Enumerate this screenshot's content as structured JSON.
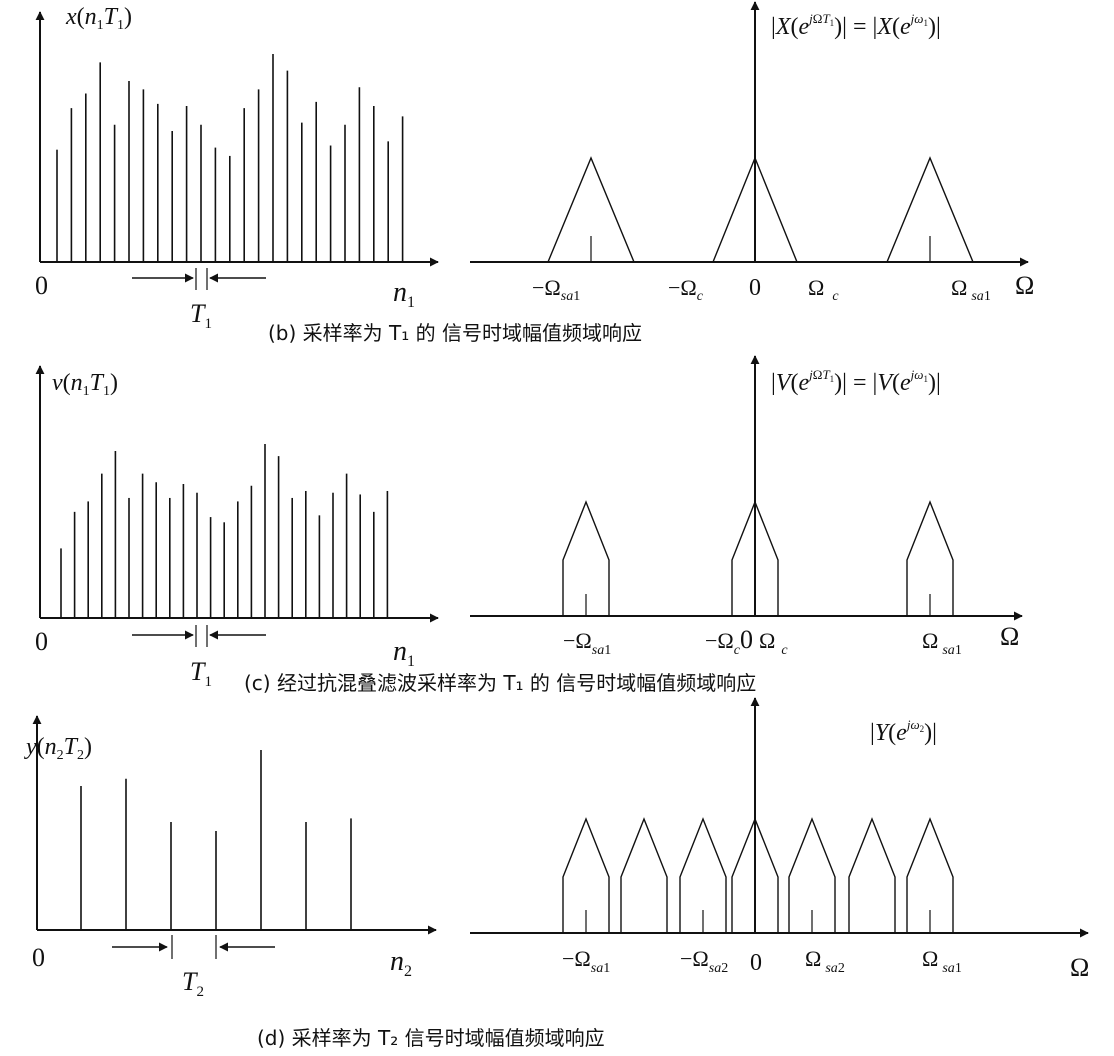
{
  "panels": {
    "b": {
      "time_label": "x(n₁T₁)",
      "zero": "0",
      "n_axis": "n₁",
      "period": "T₁",
      "stems": [
        0.54,
        0.74,
        0.81,
        0.96,
        0.66,
        0.87,
        0.83,
        0.76,
        0.63,
        0.75,
        0.66,
        0.55,
        0.51,
        0.74,
        0.83,
        1.0,
        0.92,
        0.67,
        0.77,
        0.56,
        0.66,
        0.84,
        0.75,
        0.58,
        0.7
      ],
      "spec_eq": "|X(e^{jΩT₁})| = |X(e^{jω₁})|",
      "spec_eq_text": "|X(ejΩT₁)| = |X(ejω₁)|",
      "spec_labels": [
        "−Ωsa1",
        "−Ωc",
        "0",
        "Ω c",
        "Ωsa1",
        "Ω"
      ],
      "caption": "(b) 采样率为 T₁ 的 信号时域幅值频域响应"
    },
    "c": {
      "time_label": "v(n₁T₁)",
      "zero": "0",
      "n_axis": "n₁",
      "period": "T₁",
      "stems": [
        0.4,
        0.61,
        0.67,
        0.83,
        0.96,
        0.69,
        0.83,
        0.78,
        0.69,
        0.77,
        0.72,
        0.58,
        0.55,
        0.67,
        0.76,
        1.0,
        0.93,
        0.69,
        0.73,
        0.59,
        0.72,
        0.83,
        0.71,
        0.61,
        0.73
      ],
      "spec_eq": "|V(e^{jΩT₁})| = |V(e^{jω₁})|",
      "spec_eq_text": "|V(ejΩT₁)| = |V(ejω₁)|",
      "spec_labels": [
        "−Ωsa1",
        "−Ωc 0 Ω c",
        "Ωsa1",
        "Ω"
      ],
      "caption": "(c) 经过抗混叠滤波采样率为 T₁ 的 信号时域幅值频域响应"
    },
    "d": {
      "time_label": "y(n₂T₂)",
      "zero": "0",
      "n_axis": "n₂",
      "period": "T₂",
      "stems": [
        0.8,
        0.84,
        0.6,
        0.55,
        1.0,
        0.6,
        0.62
      ],
      "spec_eq": "|Y(e^{jω₂})|",
      "spec_eq_text": "|Y(ejω₂)|",
      "spec_labels": [
        "−Ωsa1",
        "−Ωsa2",
        "0",
        "Ωsa2",
        "Ωsa1",
        "Ω"
      ],
      "caption": "(d) 采样率为 T₂ 信号时域幅值频域响应"
    }
  },
  "colors": {
    "ink": "#111111",
    "background": "#ffffff"
  }
}
